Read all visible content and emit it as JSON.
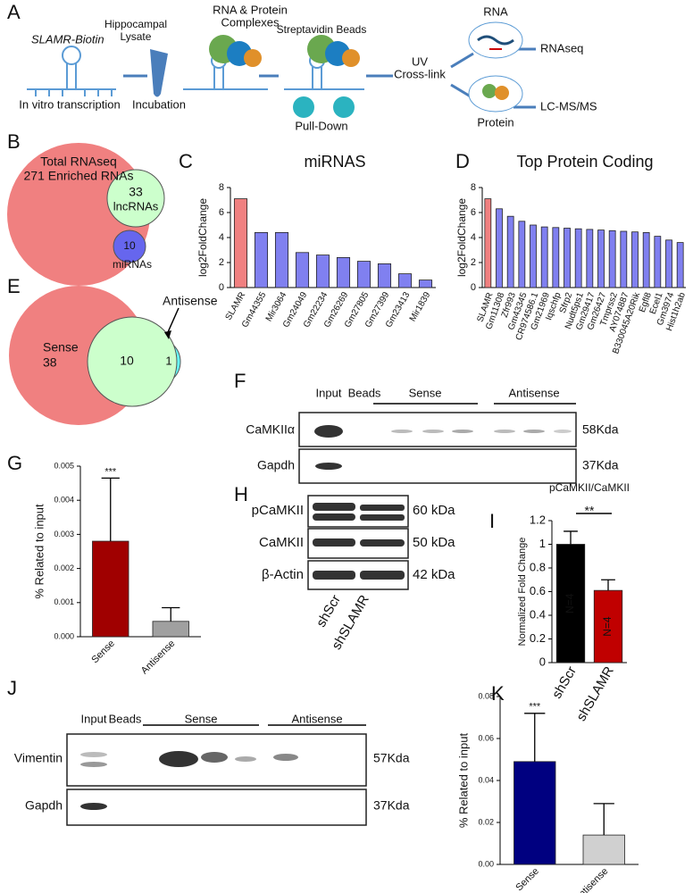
{
  "panel_labels": [
    "A",
    "B",
    "C",
    "D",
    "E",
    "F",
    "G",
    "H",
    "I",
    "J",
    "K"
  ],
  "workflow": {
    "probe": "SLAMR-Biotin",
    "steps": [
      "In vitro transcription",
      [
        "Hippocampal",
        "Lysate"
      ],
      "Incubation",
      [
        "RNA & Protein",
        "Complexes"
      ],
      "Streptavidin Beads",
      "Pull-Down",
      [
        "UV",
        "Cross-link"
      ]
    ],
    "outputs": [
      {
        "source": "RNA",
        "result": "RNAseq"
      },
      {
        "source": "Protein",
        "result": "LC-MS/MS"
      }
    ]
  },
  "venn_b": {
    "outer": [
      "Total RNAseq",
      "271 Enriched RNAs"
    ],
    "lncrna": [
      33,
      "lncRNAs"
    ],
    "mirna": [
      10,
      "miRNAs"
    ]
  },
  "venn_e": {
    "sense_label": "Sense",
    "sense": 38,
    "overlap": 10,
    "antisense": 1,
    "antisense_label": "Antisense"
  },
  "blot_f": {
    "lanes": [
      "Input",
      "Beads",
      "Sense",
      "Antisense"
    ],
    "rows": [
      {
        "name": "CaMKIIα",
        "size": "58Kda"
      },
      {
        "name": "Gapdh",
        "size": "37Kda"
      }
    ]
  },
  "blot_h": {
    "lanes": [
      "shScr",
      "shSLAMR"
    ],
    "rows": [
      {
        "name": "pCaMKII",
        "size": "60 kDa"
      },
      {
        "name": "CaMKII",
        "size": "50 kDa"
      },
      {
        "name": "β-Actin",
        "size": "42 kDa"
      }
    ]
  },
  "blot_j": {
    "lanes": [
      "Input",
      "Beads",
      "Sense",
      "Antisense"
    ],
    "rows": [
      {
        "name": "Vimentin",
        "size": "57Kda"
      },
      {
        "name": "Gapdh",
        "size": "37Kda"
      }
    ]
  },
  "chart_data": [
    {
      "type": "bar",
      "title": "miRNAS",
      "y_label": "log2FoldChange",
      "categories": [
        "SLAMR",
        "Gm44355",
        "Mir3064",
        "Gm24049",
        "Gm22234",
        "Gm26269",
        "Gm27805",
        "Gm27399",
        "Gm23413",
        "Mir1839"
      ],
      "values": [
        7.1,
        4.4,
        4.4,
        2.8,
        2.6,
        2.4,
        2.1,
        1.9,
        1.1,
        0.6
      ],
      "colors": [
        "#f08080",
        "#8080f0",
        "#8080f0",
        "#8080f0",
        "#8080f0",
        "#8080f0",
        "#8080f0",
        "#8080f0",
        "#8080f0",
        "#8080f0"
      ],
      "ylim": [
        0,
        8
      ],
      "yticks": [
        0,
        2,
        4,
        6,
        8
      ]
    },
    {
      "type": "bar",
      "title": "Top Protein Coding",
      "y_label": "log2FoldChange",
      "categories": [
        "SLAMR",
        "Gm11308",
        "Zfr993",
        "Gm43345",
        "CR974586.1",
        "Gm21969",
        "Iqschfp",
        "Sfrp2",
        "Nudt5ps1",
        "Gm29417",
        "Gm26427",
        "Tmprss2",
        "AY074887",
        "B330045A20Rik",
        "Egfl8",
        "Ecel1",
        "Gm3974",
        "Hist1h2ab"
      ],
      "values": [
        7.1,
        6.3,
        5.7,
        5.3,
        5.0,
        4.85,
        4.8,
        4.75,
        4.7,
        4.65,
        4.6,
        4.55,
        4.5,
        4.45,
        4.4,
        4.1,
        3.8,
        3.6
      ],
      "colors": [
        "#f08080",
        "#8080f0",
        "#8080f0",
        "#8080f0",
        "#8080f0",
        "#8080f0",
        "#8080f0",
        "#8080f0",
        "#8080f0",
        "#8080f0",
        "#8080f0",
        "#8080f0",
        "#8080f0",
        "#8080f0",
        "#8080f0",
        "#8080f0",
        "#8080f0",
        "#8080f0"
      ],
      "ylim": [
        0,
        8
      ],
      "yticks": [
        0,
        2,
        4,
        6,
        8
      ]
    },
    {
      "type": "bar",
      "y_label": "% Related to input",
      "categories": [
        "Sense",
        "Antisense"
      ],
      "values": [
        0.0028,
        0.00045
      ],
      "errors": [
        0.00185,
        0.0004
      ],
      "colors": [
        "#a00000",
        "#a0a0a0"
      ],
      "annotation": "***",
      "ylim": [
        0,
        0.005
      ],
      "yticks": [
        {
          "value": 0,
          "label": "0.000"
        },
        {
          "value": 0.001,
          "label": "0.001"
        },
        {
          "value": 0.002,
          "label": "0.002"
        },
        {
          "value": 0.003,
          "label": "0.003"
        },
        {
          "value": 0.004,
          "label": "0.004"
        },
        {
          "value": 0.005,
          "label": "0.005"
        }
      ]
    },
    {
      "type": "bar",
      "title": "pCaMKII/CaMKII",
      "y_label": "Normalized Fold Change",
      "categories": [
        "shScr",
        "shSLAMR"
      ],
      "values": [
        1.0,
        0.61
      ],
      "errors": [
        0.11,
        0.09
      ],
      "colors": [
        "#000000",
        "#c00000"
      ],
      "bar_labels": [
        "N=4",
        "N=4"
      ],
      "annotation": "**",
      "ylim": [
        0,
        1.2
      ],
      "yticks": [
        0,
        0.2,
        0.4,
        0.6,
        0.8,
        1,
        1.2
      ]
    },
    {
      "type": "bar",
      "y_label": "% Related to input",
      "categories": [
        "Sense",
        "Antisense"
      ],
      "values": [
        0.049,
        0.014
      ],
      "errors": [
        0.023,
        0.015
      ],
      "colors": [
        "#000080",
        "#d0d0d0"
      ],
      "annotation": "***",
      "ylim": [
        0,
        0.08
      ],
      "yticks": [
        {
          "value": 0,
          "label": "0.00"
        },
        {
          "value": 0.02,
          "label": "0.02"
        },
        {
          "value": 0.04,
          "label": "0.04"
        },
        {
          "value": 0.06,
          "label": "0.06"
        },
        {
          "value": 0.08,
          "label": "0.08"
        }
      ]
    }
  ]
}
